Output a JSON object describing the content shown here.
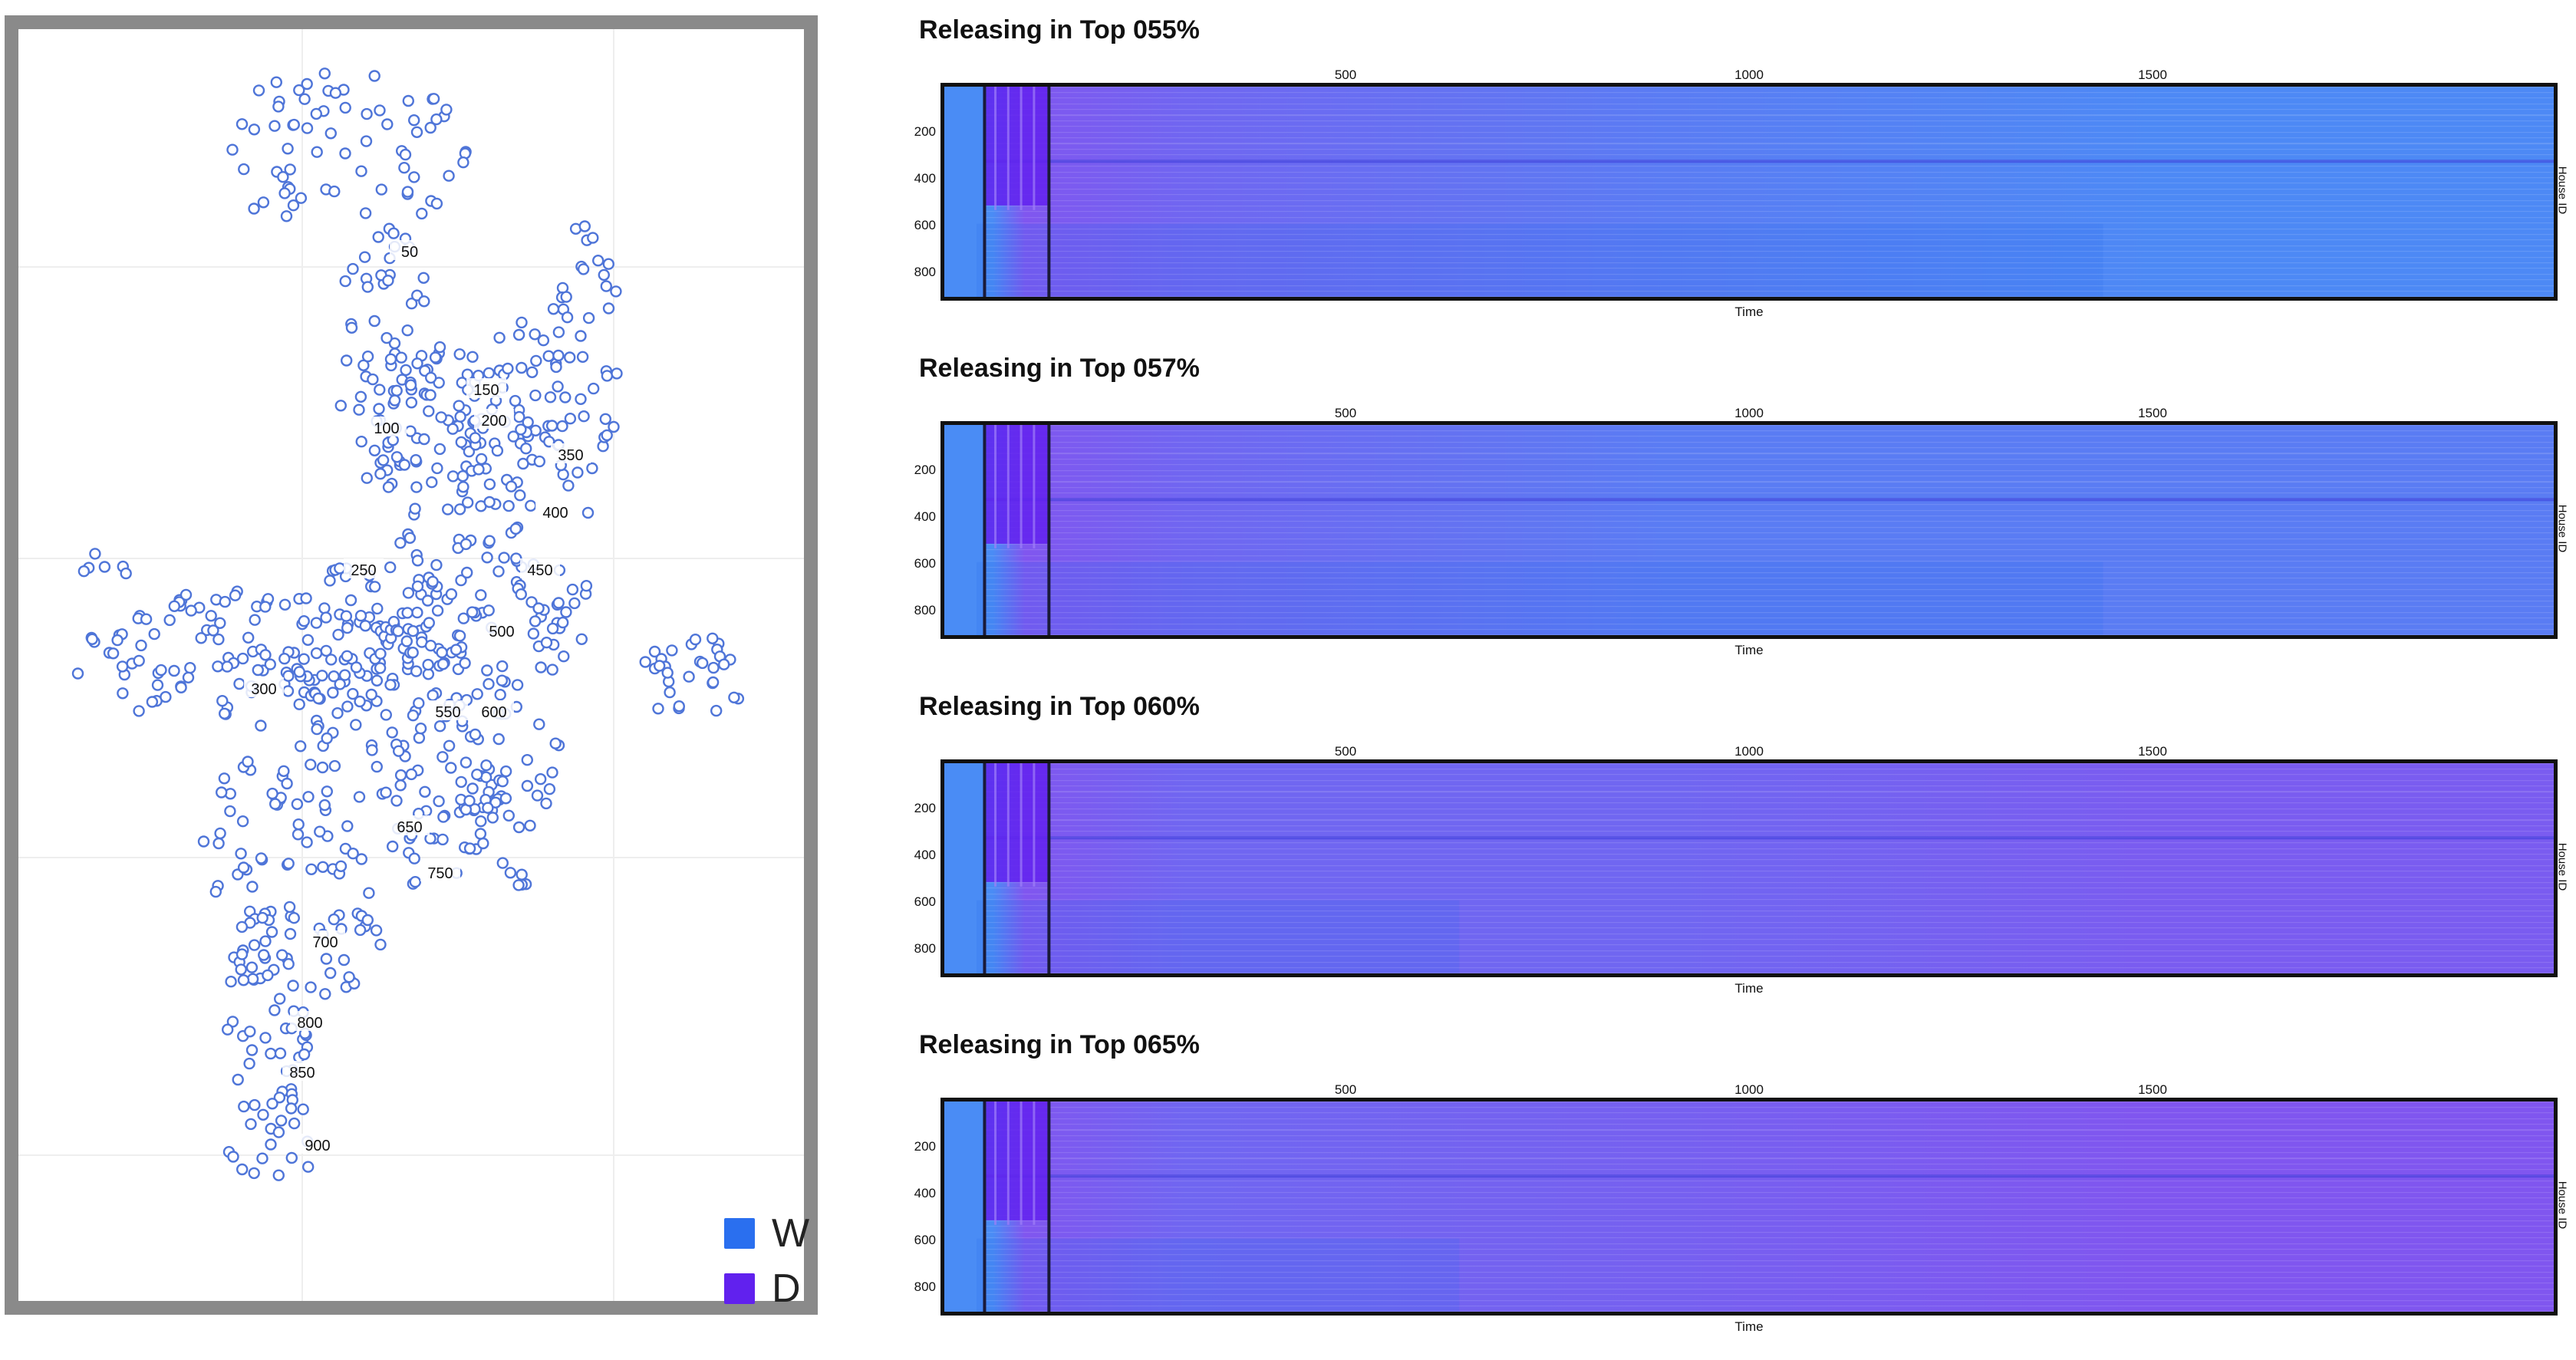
{
  "colors": {
    "W": "#2a6fef",
    "D": "#6121ee",
    "map_dot": "#4f75d8"
  },
  "legend": [
    {
      "label": "W",
      "color": "#2a6fef"
    },
    {
      "label": "D",
      "color": "#6121ee"
    }
  ],
  "chart_data": [
    {
      "type": "scatter",
      "title": "",
      "description_panel": "house map",
      "house_labels": [
        "50",
        "100",
        "150",
        "200",
        "250",
        "300",
        "350",
        "400",
        "450",
        "500",
        "550",
        "600",
        "650",
        "700",
        "750",
        "800",
        "850",
        "900"
      ],
      "legend": [
        "W",
        "D"
      ],
      "grid": true
    },
    {
      "type": "heatmap",
      "title": "Releasing in Top 055%",
      "xlabel": "Time",
      "ylabel": "House ID",
      "x_ticks": [
        500,
        1000,
        1500
      ],
      "y_ticks": [
        200,
        400,
        600,
        800
      ],
      "xlim": [
        0,
        2000
      ],
      "ylim": [
        0,
        920
      ],
      "markers_x": [
        50,
        130
      ],
      "end_state": "W",
      "d_fraction_end": 0.05
    },
    {
      "type": "heatmap",
      "title": "Releasing in Top 057%",
      "xlabel": "Time",
      "ylabel": "House ID",
      "x_ticks": [
        500,
        1000,
        1500
      ],
      "y_ticks": [
        200,
        400,
        600,
        800
      ],
      "xlim": [
        0,
        2000
      ],
      "ylim": [
        0,
        920
      ],
      "markers_x": [
        50,
        130
      ],
      "end_state": "W",
      "d_fraction_end": 0.25
    },
    {
      "type": "heatmap",
      "title": "Releasing in Top 060%",
      "xlabel": "Time",
      "ylabel": "House ID",
      "x_ticks": [
        500,
        1000,
        1500
      ],
      "y_ticks": [
        200,
        400,
        600,
        800
      ],
      "xlim": [
        0,
        2000
      ],
      "ylim": [
        0,
        920
      ],
      "markers_x": [
        50,
        130
      ],
      "end_state": "D",
      "d_fraction_end": 0.75
    },
    {
      "type": "heatmap",
      "title": "Releasing in Top 065%",
      "xlabel": "Time",
      "ylabel": "House ID",
      "x_ticks": [
        500,
        1000,
        1500
      ],
      "y_ticks": [
        200,
        400,
        600,
        800
      ],
      "xlim": [
        0,
        2000
      ],
      "ylim": [
        0,
        920
      ],
      "markers_x": [
        50,
        130
      ],
      "end_state": "D",
      "d_fraction_end": 0.85
    }
  ]
}
